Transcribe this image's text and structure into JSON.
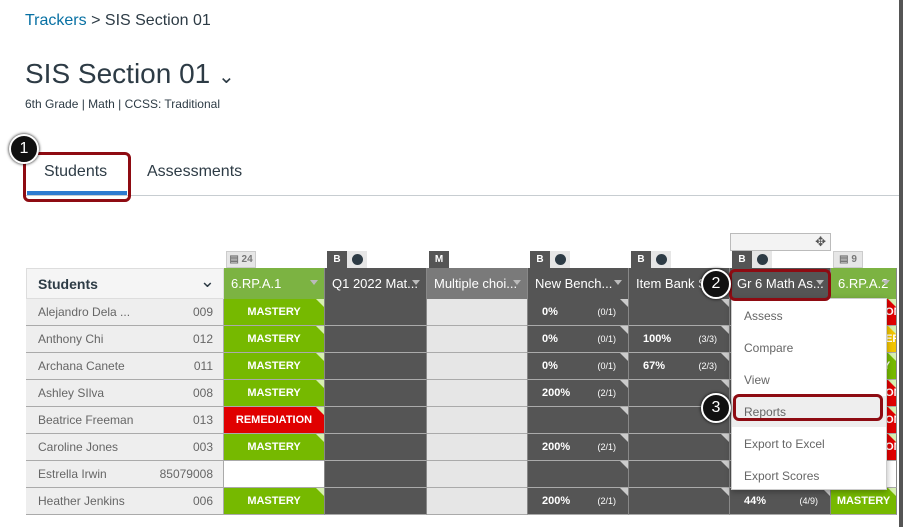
{
  "breadcrumb": {
    "root": "Trackers",
    "sep": ">",
    "current": "SIS Section 01"
  },
  "title": "SIS Section 01",
  "subtitle": "6th Grade | Math | CCSS: Traditional",
  "tabs": [
    {
      "label": "Students"
    },
    {
      "label": "Assessments"
    }
  ],
  "callouts": [
    "1",
    "2",
    "3"
  ],
  "students_header": "Students",
  "columns": [
    {
      "label": "6.RP.A.1",
      "badge": "24",
      "color": "#7cb342"
    },
    {
      "label": "Q1 2022 Mat...",
      "badge": "B",
      "checked": true,
      "color": "#555555"
    },
    {
      "label": "Multiple choi...",
      "badge": "M",
      "color": "#7a7a7a"
    },
    {
      "label": "New Bench...",
      "badge": "B",
      "checked": true,
      "color": "#555555"
    },
    {
      "label": "Item Bank S",
      "badge": "B",
      "checked": true,
      "color": "#555555"
    },
    {
      "label": "Gr 6 Math As...",
      "badge": "B",
      "checked": true,
      "color": "#555555"
    },
    {
      "label": "6.RP.A.2",
      "badge": "9",
      "color": "#7cb342"
    }
  ],
  "rows": [
    {
      "name": "Alejandro Dela ...",
      "id": "009",
      "c1": "MASTERY",
      "c4": [
        "0%",
        "(0/1)"
      ],
      "c5": null,
      "c7": "REMEDIATION"
    },
    {
      "name": "Anthony Chi",
      "id": "012",
      "c1": "MASTERY",
      "c4": [
        "0%",
        "(0/1)"
      ],
      "c5": [
        "100%",
        "(3/3)"
      ],
      "c7": "NEAR MASTERY"
    },
    {
      "name": "Archana Canete",
      "id": "011",
      "c1": "MASTERY",
      "c4": [
        "0%",
        "(0/1)"
      ],
      "c5": [
        "67%",
        "(2/3)"
      ],
      "c7": "MASTERY"
    },
    {
      "name": "Ashley SIlva",
      "id": "008",
      "c1": "MASTERY",
      "c4": [
        "200%",
        "(2/1)"
      ],
      "c5": null,
      "c7": "REMEDIATION"
    },
    {
      "name": "Beatrice Freeman",
      "id": "013",
      "c1": "REMEDIATION",
      "c4": null,
      "c5": null,
      "c7": "REMEDIATION"
    },
    {
      "name": "Caroline Jones",
      "id": "003",
      "c1": "MASTERY",
      "c4": [
        "200%",
        "(2/1)"
      ],
      "c5": null,
      "c7": "REMEDIATION"
    },
    {
      "name": "Estrella Irwin",
      "id": "85079008",
      "c1": "",
      "c4": null,
      "c5": null,
      "c7": ""
    },
    {
      "name": "Heather Jenkins",
      "id": "006",
      "c1": "MASTERY",
      "c4": [
        "200%",
        "(2/1)"
      ],
      "c5": null,
      "c6": [
        "44%",
        "(4/9)"
      ],
      "c7": "MASTERY"
    }
  ],
  "status_colors": {
    "MASTERY": "#76b900",
    "REMEDIATION": "#e00000",
    "NEAR MASTERY": "#f2c500",
    "": "#ffffff"
  },
  "menu": [
    "Assess",
    "Compare",
    "View",
    "Reports",
    "Export to Excel",
    "Export Scores"
  ]
}
